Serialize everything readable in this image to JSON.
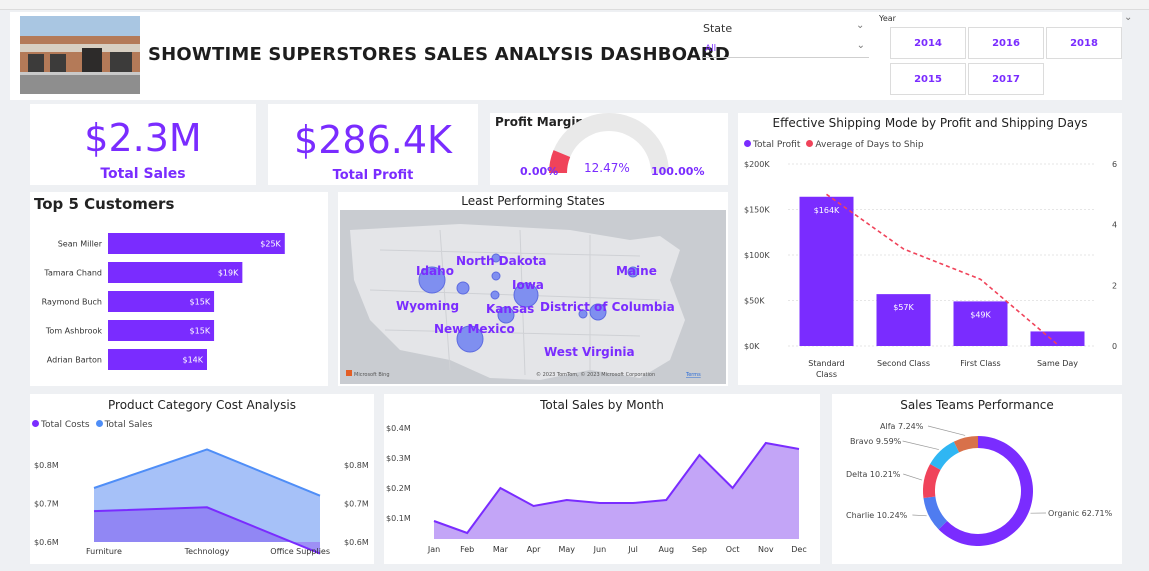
{
  "header": {
    "title": "SHOWTIME SUPERSTORES SALES ANALYSIS DASHBOARD",
    "state_slicer": {
      "label": "State",
      "value": "All"
    },
    "year_slicer": {
      "label": "Year",
      "options": [
        "2014",
        "2016",
        "2018",
        "2015",
        "2017"
      ]
    }
  },
  "kpis": {
    "total_sales": {
      "value": "$2.3M",
      "label": "Total Sales"
    },
    "total_profit": {
      "value": "$286.4K",
      "label": "Total Profit"
    }
  },
  "colors": {
    "accent": "#7a2cff",
    "accent2": "#4f8ef7",
    "red": "#f0435a",
    "grey": "#e9e9e9"
  },
  "chart_data": [
    {
      "type": "gauge",
      "title": "Profit Margin %",
      "value": 12.47,
      "value_label": "12.47%",
      "min_label": "0.00%",
      "max_label": "100.00%",
      "range": [
        0,
        100
      ]
    },
    {
      "type": "bar",
      "title": "Top 5 Customers",
      "orientation": "horizontal",
      "categories": [
        "Sean Miller",
        "Tamara Chand",
        "Raymond Buch",
        "Tom Ashbrook",
        "Adrian Barton"
      ],
      "values": [
        25,
        19,
        15,
        15,
        14
      ],
      "data_labels": [
        "$25K",
        "$19K",
        "$15K",
        "$15K",
        "$14K"
      ],
      "xlim": [
        0,
        28
      ]
    },
    {
      "type": "map",
      "title": "Least Performing States",
      "labels": [
        "North Dakota",
        "Idaho",
        "Maine",
        "Iowa",
        "Wyoming",
        "Kansas",
        "District of Columbia",
        "New Mexico",
        "West Virginia"
      ],
      "attribution_left": "Microsoft Bing",
      "attribution_right": "© 2023 TomTom, © 2023 Microsoft Corporation",
      "terms": "Terms"
    },
    {
      "type": "bar",
      "title": "Effective Shipping Mode by Profit and Shipping Days",
      "legend_position": "top-left",
      "categories": [
        "Standard Class",
        "Second Class",
        "First Class",
        "Same Day"
      ],
      "series": [
        {
          "name": "Total Profit",
          "values": [
            164,
            57,
            49,
            16
          ],
          "data_labels": [
            "$164K",
            "$57K",
            "$49K",
            ""
          ]
        },
        {
          "name": "Average of Days to Ship",
          "values": [
            5.0,
            3.2,
            2.2,
            0.05
          ],
          "type": "line"
        }
      ],
      "y_ticks": [
        "$0K",
        "$50K",
        "$100K",
        "$150K",
        "$200K"
      ],
      "ylim": [
        0,
        200
      ],
      "y2_ticks": [
        "0",
        "2",
        "4",
        "6"
      ],
      "y2lim": [
        0,
        6
      ]
    },
    {
      "type": "area",
      "title": "Product Category Cost Analysis",
      "legend_position": "top-left",
      "categories": [
        "Furniture",
        "Technology",
        "Office Supplies"
      ],
      "series": [
        {
          "name": "Total Costs",
          "values": [
            0.68,
            0.69,
            0.57
          ]
        },
        {
          "name": "Total Sales",
          "values": [
            0.74,
            0.84,
            0.72
          ]
        }
      ],
      "y_ticks": [
        "$0.6M",
        "$0.7M",
        "$0.8M"
      ],
      "y2_ticks": [
        "$0.6M",
        "$0.7M",
        "$0.8M"
      ],
      "ylim": [
        0.6,
        0.88
      ]
    },
    {
      "type": "area",
      "title": "Total Sales by Month",
      "categories": [
        "Jan",
        "Feb",
        "Mar",
        "Apr",
        "May",
        "Jun",
        "Jul",
        "Aug",
        "Sep",
        "Oct",
        "Nov",
        "Dec"
      ],
      "values": [
        0.09,
        0.05,
        0.2,
        0.14,
        0.16,
        0.15,
        0.15,
        0.16,
        0.31,
        0.2,
        0.35,
        0.33
      ],
      "y_ticks": [
        "$0.1M",
        "$0.2M",
        "$0.3M",
        "$0.4M"
      ],
      "ylim": [
        0.03,
        0.42
      ]
    },
    {
      "type": "pie",
      "title": "Sales Teams Performance",
      "labels": [
        "Organic",
        "Charlie",
        "Delta",
        "Bravo",
        "Alfa"
      ],
      "values": [
        62.71,
        10.24,
        10.21,
        9.59,
        7.24
      ],
      "data_labels": [
        "Organic 62.71%",
        "Charlie 10.24%",
        "Delta 10.21%",
        "Bravo 9.59%",
        "Alfa 7.24%"
      ],
      "colors": [
        "#7a2cff",
        "#4f7cf0",
        "#f0435a",
        "#2fb6f3",
        "#d8714a"
      ]
    }
  ]
}
